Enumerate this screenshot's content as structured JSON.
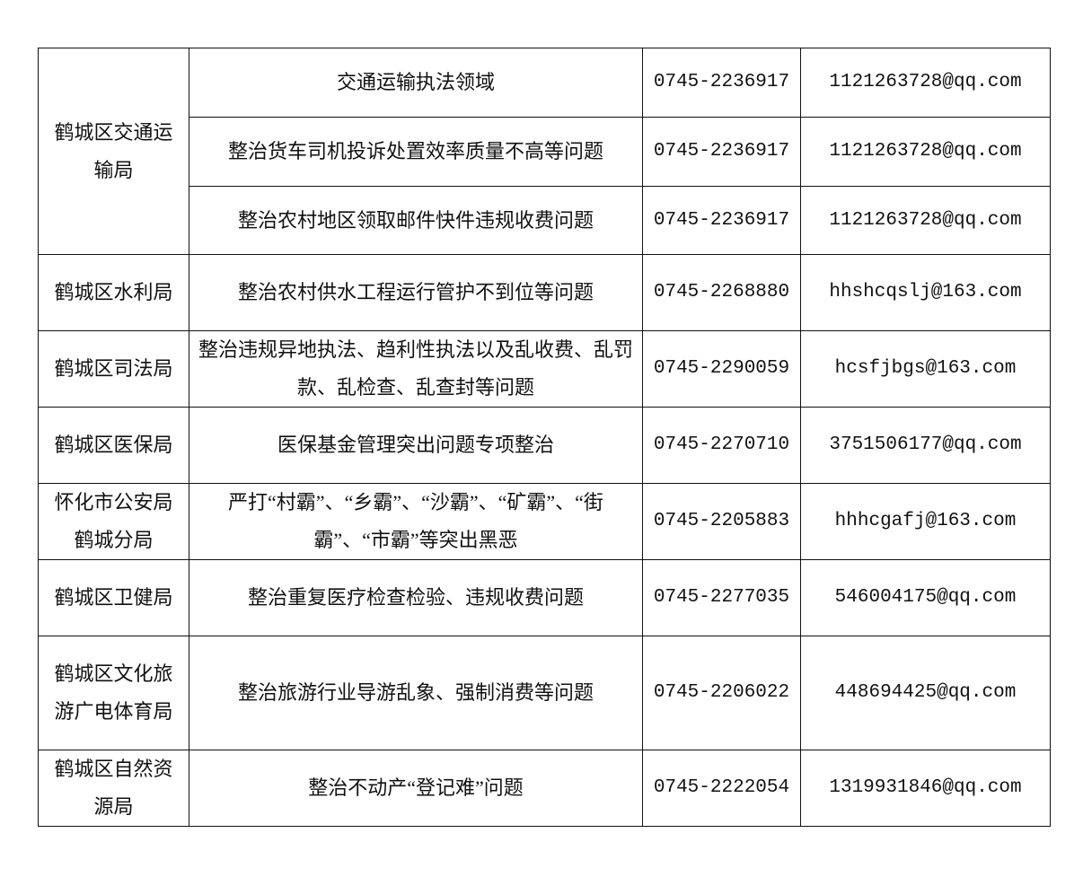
{
  "table": {
    "rows": [
      {
        "dept": "鹤城区交通运输局",
        "rowspan": 3,
        "task": "交通运输执法领域",
        "phone": "0745-2236917",
        "email": "1121263728@qq.com"
      },
      {
        "dept": null,
        "task": "整治货车司机投诉处置效率质量不高等问题",
        "phone": "0745-2236917",
        "email": "1121263728@qq.com"
      },
      {
        "dept": null,
        "task": "整治农村地区领取邮件快件违规收费问题",
        "phone": "0745-2236917",
        "email": "1121263728@qq.com"
      },
      {
        "dept": "鹤城区水利局",
        "rowspan": 1,
        "task": "整治农村供水工程运行管护不到位等问题",
        "phone": "0745-2268880",
        "email": "hhshcqslj@163.com"
      },
      {
        "dept": "鹤城区司法局",
        "rowspan": 1,
        "task": "整治违规异地执法、趋利性执法以及乱收费、乱罚款、乱检查、乱查封等问题",
        "phone": "0745-2290059",
        "email": "hcsfjbgs@163.com"
      },
      {
        "dept": "鹤城区医保局",
        "rowspan": 1,
        "task": "医保基金管理突出问题专项整治",
        "phone": "0745-2270710",
        "email": "3751506177@qq.com"
      },
      {
        "dept": "怀化市公安局鹤城分局",
        "rowspan": 1,
        "task": "严打“村霸”、“乡霸”、“沙霸”、“矿霸”、“街霸”、“市霸”等突出黑恶",
        "phone": "0745-2205883",
        "email": "hhhcgafj@163.com"
      },
      {
        "dept": "鹤城区卫健局",
        "rowspan": 1,
        "task": "整治重复医疗检查检验、违规收费问题",
        "phone": "0745-2277035",
        "email": "546004175@qq.com"
      },
      {
        "dept": "鹤城区文化旅游广电体育局",
        "rowspan": 1,
        "task": "整治旅游行业导游乱象、强制消费等问题",
        "phone": "0745-2206022",
        "email": "448694425@qq.com"
      },
      {
        "dept": "鹤城区自然资源局",
        "rowspan": 1,
        "task": "整治不动产“登记难”问题",
        "phone": "0745-2222054",
        "email": "1319931846@qq.com"
      }
    ]
  }
}
